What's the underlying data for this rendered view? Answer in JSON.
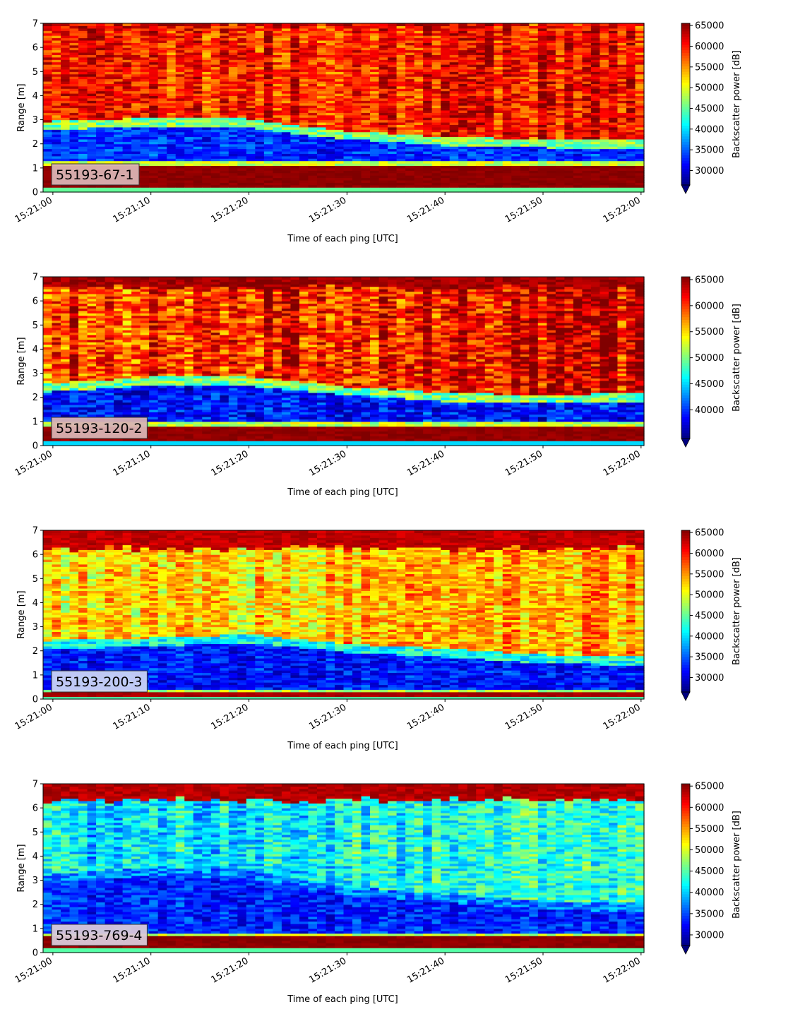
{
  "chart_data": [
    {
      "type": "heatmap",
      "annotation": "55193-67-1",
      "annotation_bg": "#d9b3b3",
      "xlabel": "Time of each ping [UTC]",
      "ylabel": "Range [m]",
      "colorbar_label": "Backscatter power [dB]",
      "colormap": "jet",
      "xticks": [
        "15:21:00",
        "15:21:10",
        "15:21:20",
        "15:21:30",
        "15:21:40",
        "15:21:50",
        "15:22:00"
      ],
      "xtick_seconds": [
        0,
        10,
        20,
        30,
        40,
        50,
        60
      ],
      "xlim": [
        -1,
        60.3
      ],
      "yticks": [
        "0",
        "1",
        "2",
        "3",
        "4",
        "5",
        "6",
        "7"
      ],
      "ylim": [
        0,
        7
      ],
      "clim": [
        26500,
        65535
      ],
      "colorbar_ticks": [
        30000,
        35000,
        40000,
        45000,
        50000,
        55000,
        60000,
        65000
      ],
      "colorbar_extend": "min",
      "structure": {
        "surface_band_m": [
          0.2,
          1.15
        ],
        "surface_value": 65000,
        "seabed_value": 64000,
        "seabed_floor_m": 6.9,
        "low_layer_top_m": [
          [
            0,
            2.7
          ],
          [
            10,
            2.85
          ],
          [
            20,
            2.8
          ],
          [
            25,
            2.5
          ],
          [
            30,
            2.3
          ],
          [
            40,
            2.05
          ],
          [
            50,
            1.95
          ],
          [
            60,
            1.95
          ]
        ],
        "low_value": 33000,
        "upper_value": 59000,
        "upper_right_value": 61000
      }
    },
    {
      "type": "heatmap",
      "annotation": "55193-120-2",
      "annotation_bg": "#d9b3b3",
      "xlabel": "Time of each ping [UTC]",
      "ylabel": "Range [m]",
      "colorbar_label": "Backscatter power [dB]",
      "colormap": "jet",
      "xticks": [
        "15:21:00",
        "15:21:10",
        "15:21:20",
        "15:21:30",
        "15:21:40",
        "15:21:50",
        "15:22:00"
      ],
      "xtick_seconds": [
        0,
        10,
        20,
        30,
        40,
        50,
        60
      ],
      "xlim": [
        -1,
        60.3
      ],
      "yticks": [
        "0",
        "1",
        "2",
        "3",
        "4",
        "5",
        "6",
        "7"
      ],
      "ylim": [
        0,
        7
      ],
      "clim": [
        34500,
        65535
      ],
      "colorbar_ticks": [
        40000,
        45000,
        50000,
        55000,
        60000,
        65000
      ],
      "colorbar_extend": "min",
      "structure": {
        "surface_band_m": [
          0.2,
          0.85
        ],
        "surface_value": 65000,
        "seabed_value": 64500,
        "seabed_floor_m": 6.5,
        "low_layer_top_m": [
          [
            0,
            2.35
          ],
          [
            10,
            2.6
          ],
          [
            18,
            2.65
          ],
          [
            25,
            2.4
          ],
          [
            30,
            2.2
          ],
          [
            40,
            1.95
          ],
          [
            50,
            1.85
          ],
          [
            60,
            1.95
          ]
        ],
        "low_value": 39000,
        "upper_value": 60000,
        "upper_right_value": 63000
      }
    },
    {
      "type": "heatmap",
      "annotation": "55193-200-3",
      "annotation_bg": "#c9d3f5",
      "xlabel": "Time of each ping [UTC]",
      "ylabel": "Range [m]",
      "colorbar_label": "Backscatter power [dB]",
      "colormap": "jet",
      "xticks": [
        "15:21:00",
        "15:21:10",
        "15:21:20",
        "15:21:30",
        "15:21:40",
        "15:21:50",
        "15:22:00"
      ],
      "xtick_seconds": [
        0,
        10,
        20,
        30,
        40,
        50,
        60
      ],
      "xlim": [
        -1,
        60.3
      ],
      "yticks": [
        "0",
        "1",
        "2",
        "3",
        "4",
        "5",
        "6",
        "7"
      ],
      "ylim": [
        0,
        7
      ],
      "clim": [
        26500,
        65535
      ],
      "colorbar_ticks": [
        30000,
        35000,
        40000,
        45000,
        50000,
        55000,
        60000,
        65000
      ],
      "colorbar_extend": "min",
      "structure": {
        "surface_band_m": [
          0.15,
          0.3
        ],
        "surface_value": 64000,
        "seabed_value": 63000,
        "seabed_floor_m": 6.2,
        "low_layer_top_m": [
          [
            0,
            2.2
          ],
          [
            10,
            2.3
          ],
          [
            20,
            2.45
          ],
          [
            30,
            2.05
          ],
          [
            40,
            1.85
          ],
          [
            50,
            1.6
          ],
          [
            60,
            1.5
          ]
        ],
        "low_value": 32000,
        "upper_value": 51500,
        "upper_right_value": 54500
      }
    },
    {
      "type": "heatmap",
      "annotation": "55193-769-4",
      "annotation_bg": "#d9c9d9",
      "xlabel": "Time of each ping [UTC]",
      "ylabel": "Range [m]",
      "colorbar_label": "Backscatter power [dB]",
      "colormap": "jet",
      "xticks": [
        "15:21:00",
        "15:21:10",
        "15:21:20",
        "15:21:30",
        "15:21:40",
        "15:21:50",
        "15:22:00"
      ],
      "xtick_seconds": [
        0,
        10,
        20,
        30,
        40,
        50,
        60
      ],
      "xlim": [
        -1,
        60.3
      ],
      "yticks": [
        "0",
        "1",
        "2",
        "3",
        "4",
        "5",
        "6",
        "7"
      ],
      "ylim": [
        0,
        7
      ],
      "clim": [
        27500,
        65535
      ],
      "colorbar_ticks": [
        30000,
        35000,
        40000,
        45000,
        50000,
        55000,
        60000,
        65000
      ],
      "colorbar_extend": "min",
      "structure": {
        "surface_band_m": [
          0.2,
          0.65
        ],
        "surface_value": 65000,
        "seabed_value": 63500,
        "seabed_floor_m": 6.3,
        "low_layer_top_m": [
          [
            0,
            3.0
          ],
          [
            10,
            3.3
          ],
          [
            20,
            3.2
          ],
          [
            30,
            2.5
          ],
          [
            40,
            2.2
          ],
          [
            50,
            1.9
          ],
          [
            60,
            1.8
          ]
        ],
        "low_value": 33500,
        "upper_value": 40500,
        "upper_right_value": 44000
      }
    }
  ]
}
